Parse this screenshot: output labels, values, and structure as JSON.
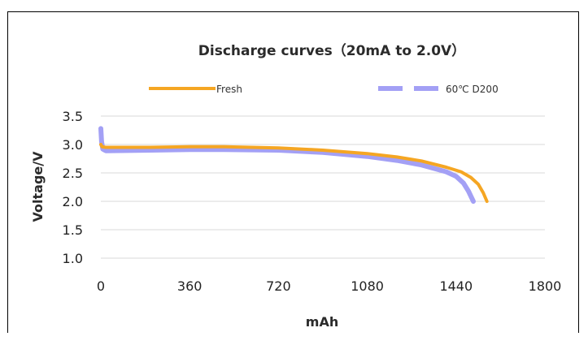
{
  "chart_data": {
    "type": "line",
    "title": "Discharge curves（20mA to 2.0V）",
    "xlabel": "mAh",
    "ylabel": "Voltage/V",
    "xlim": [
      0,
      1800
    ],
    "ylim": [
      1.0,
      3.5
    ],
    "x_ticks": [
      "0",
      "360",
      "720",
      "1080",
      "1440",
      "1800"
    ],
    "y_ticks": [
      "1.0",
      "1.5",
      "2.0",
      "2.5",
      "3.0",
      "3.5"
    ],
    "grid": "horizontal",
    "legend_position": "top",
    "series": [
      {
        "name": "Fresh",
        "color": "#f5a623",
        "style": "solid",
        "points": [
          [
            0,
            3.0
          ],
          [
            5,
            2.96
          ],
          [
            20,
            2.95
          ],
          [
            100,
            2.95
          ],
          [
            200,
            2.95
          ],
          [
            360,
            2.96
          ],
          [
            500,
            2.96
          ],
          [
            720,
            2.94
          ],
          [
            900,
            2.9
          ],
          [
            1080,
            2.84
          ],
          [
            1200,
            2.78
          ],
          [
            1300,
            2.71
          ],
          [
            1400,
            2.6
          ],
          [
            1460,
            2.52
          ],
          [
            1500,
            2.42
          ],
          [
            1530,
            2.3
          ],
          [
            1550,
            2.15
          ],
          [
            1565,
            2.0
          ]
        ]
      },
      {
        "name": "60℃ D200",
        "color": "#a3a0f5",
        "style": "dashed",
        "points": [
          [
            0,
            3.28
          ],
          [
            3,
            3.05
          ],
          [
            8,
            2.92
          ],
          [
            20,
            2.89
          ],
          [
            200,
            2.9
          ],
          [
            360,
            2.91
          ],
          [
            500,
            2.91
          ],
          [
            720,
            2.9
          ],
          [
            900,
            2.86
          ],
          [
            1080,
            2.79
          ],
          [
            1200,
            2.72
          ],
          [
            1300,
            2.64
          ],
          [
            1400,
            2.52
          ],
          [
            1440,
            2.44
          ],
          [
            1470,
            2.32
          ],
          [
            1490,
            2.18
          ],
          [
            1510,
            2.0
          ]
        ]
      }
    ]
  },
  "colors": {
    "fresh": "#f5a623",
    "aged": "#a3a0f5",
    "grid": "#d9d9d9",
    "frame": "#000000"
  }
}
